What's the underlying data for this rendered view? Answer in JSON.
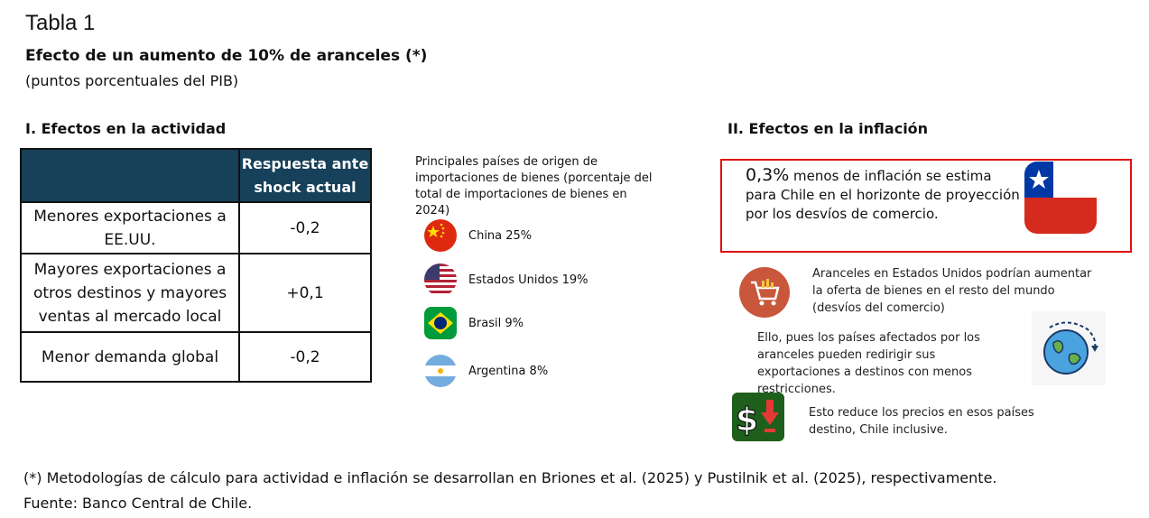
{
  "header": {
    "table_label": "Tabla 1",
    "title": "Efecto de un aumento de 10% de aranceles (*)",
    "subtitle": "(puntos porcentuales del PIB)"
  },
  "activity": {
    "heading": "I. Efectos en la actividad",
    "column_header_line1": "Respuesta ante",
    "column_header_line2": "shock actual",
    "rows": [
      {
        "line1": "Menores exportaciones a",
        "line2": "EE.UU.",
        "line3": "",
        "value": "-0,2"
      },
      {
        "line1": "Mayores exportaciones a",
        "line2": "otros destinos y mayores",
        "line3": "ventas al mercado local",
        "value": "+0,1"
      },
      {
        "line1": "Menor demanda global",
        "line2": "",
        "line3": "",
        "value": "-0,2"
      }
    ]
  },
  "imports": {
    "caption_line1": "Principales países de origen de",
    "caption_line2": "importaciones de bienes (porcentaje del",
    "caption_line3": "total de importaciones de bienes en",
    "caption_line4": "2024)",
    "countries": [
      {
        "label": "China 25%",
        "icon": "china-flag-icon"
      },
      {
        "label": "Estados Unidos 19%",
        "icon": "usa-flag-icon"
      },
      {
        "label": "Brasil 9%",
        "icon": "brazil-flag-icon"
      },
      {
        "label": "Argentina 8%",
        "icon": "argentina-flag-icon"
      }
    ]
  },
  "inflation": {
    "heading": "II. Efectos en la inflación",
    "highlight_value": "0,3%",
    "highlight_rest": " menos de inflación se estima para Chile en el horizonte de proyección por los desvíos de comercio.",
    "note1": "Aranceles en Estados Unidos podrían aumentar la oferta de bienes en el resto del mundo (desvíos del comercio)",
    "note2": "Ello, pues los países afectados por los aranceles pueden redirigir sus exportaciones a destinos con menos restricciones.",
    "note3": "Esto reduce los precios en esos países destino, Chile inclusive."
  },
  "footer": {
    "footnote": "(*) Metodologías de cálculo para actividad e inflación se desarrollan en Briones et al. (2025) y Pustilnik et al. (2025), respectivamente.",
    "source": "Fuente: Banco Central de Chile."
  },
  "colors": {
    "table_header_bg": "#17405a",
    "highlight_border": "#e01010"
  }
}
